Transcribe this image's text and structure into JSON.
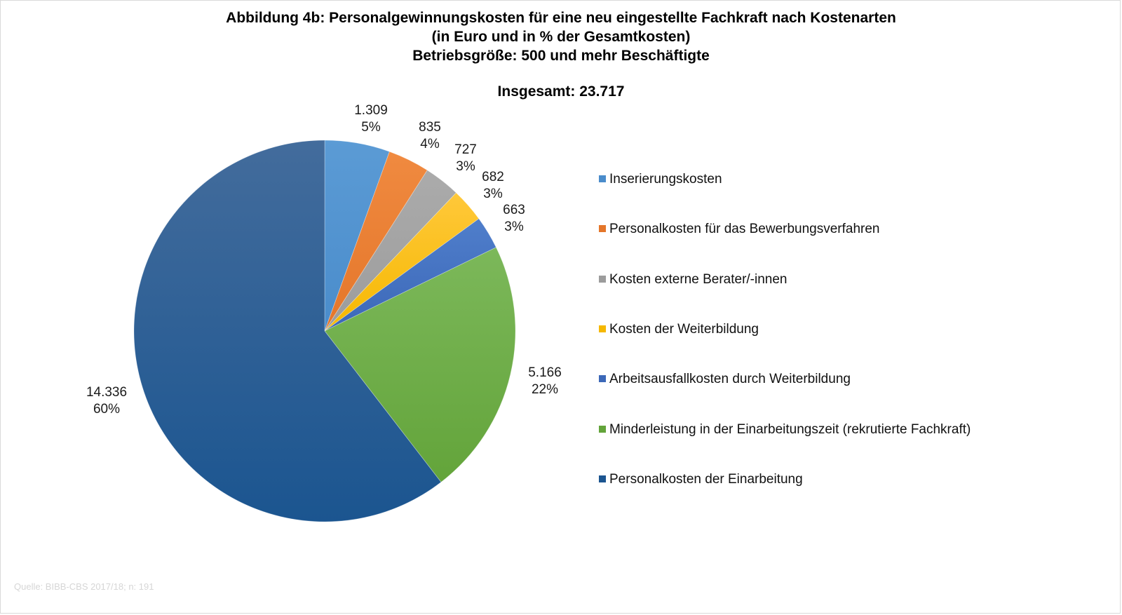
{
  "chart_data": {
    "type": "pie",
    "title": "Abbildung 4b: Personalgewinnungskosten für eine neu eingestellte Fachkraft nach Kostenarten",
    "subtitle_lines": [
      "(in Euro und in % der Gesamtkosten)",
      "Betriebsgröße: 500 und mehr Beschäftigte"
    ],
    "total_label": "Insgesamt: 23.717",
    "total": 23717,
    "start_angle": "12 o'clock",
    "direction": "clockwise",
    "legend_position": "right",
    "slices": [
      {
        "name": "Inserierungskosten",
        "value": 1309,
        "value_label": "1.309",
        "percent_label": "5%",
        "color": "#5B9BD5",
        "color_dark": "#4a8ccb"
      },
      {
        "name": "Personalkosten für das Bewerbungsverfahren",
        "value": 835,
        "value_label": "835",
        "percent_label": "4%",
        "color": "#F08A40",
        "color_dark": "#E4762A"
      },
      {
        "name": "Kosten externe Berater/-innen",
        "value": 727,
        "value_label": "727",
        "percent_label": "3%",
        "color": "#ABABAB",
        "color_dark": "#9C9C9C"
      },
      {
        "name": "Kosten der Weiterbildung",
        "value": 682,
        "value_label": "682",
        "percent_label": "3%",
        "color": "#FFC83A",
        "color_dark": "#F5B800"
      },
      {
        "name": "Arbeitsausfallkosten durch Weiterbildung",
        "value": 663,
        "value_label": "663",
        "percent_label": "3%",
        "color": "#4F7ECB",
        "color_dark": "#3C68B8"
      },
      {
        "name": "Minderleistung in der Einarbeitungszeit (rekrutierte Fachkraft)",
        "value": 5166,
        "value_label": "5.166",
        "percent_label": "22%",
        "color": "#7CB85A",
        "color_dark": "#63A43A"
      },
      {
        "name": "Personalkosten der Einarbeitung",
        "value": 14336,
        "value_label": "14.336",
        "percent_label": "60%",
        "color": "#436C9C",
        "color_dark": "#1B5590"
      }
    ]
  },
  "source": "Quelle: BIBB-CBS 2017/18; n: 191"
}
